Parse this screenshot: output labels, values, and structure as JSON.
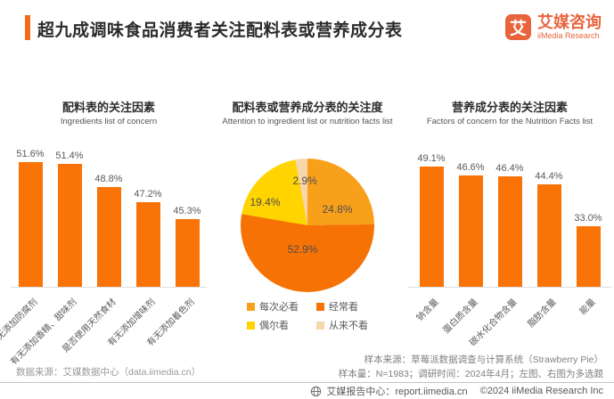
{
  "header": {
    "title": "超九成调味食品消费者关注配料表或营养成分表",
    "logo": {
      "mark": "艾",
      "name_cn": "艾媒咨询",
      "name_en": "iiMedia Research"
    }
  },
  "colors": {
    "accent": "#f26b1d",
    "logo_orange": "#e8643c",
    "bar_orange": "#f97306",
    "text_dark": "#2b2b2b",
    "label_gray": "#595959"
  },
  "chart_data": [
    {
      "type": "bar",
      "title": "配料表的关注因素",
      "subtitle": "Ingredients list of concern",
      "categories": [
        "有无添加防腐剂",
        "有无添加香精、甜味剂",
        "是否使用天然食材",
        "有无添加增味剂",
        "有无添加着色剂"
      ],
      "values": [
        51.6,
        51.4,
        48.8,
        47.2,
        45.3
      ],
      "value_labels": [
        "51.6%",
        "51.4%",
        "48.8%",
        "47.2%",
        "45.3%"
      ],
      "unit": "%",
      "bar_color": "#f97306",
      "grid": false,
      "axis_note": "y-axis hidden, non-zero baseline"
    },
    {
      "type": "pie",
      "title": "配料表或营养成分表的关注度",
      "subtitle": "Attention to ingredient list or nutrition facts list",
      "slices": [
        {
          "label": "每次必看",
          "value": 24.8,
          "display": "24.8%",
          "color": "#f9a01b"
        },
        {
          "label": "经常看",
          "value": 52.9,
          "display": "52.9%",
          "color": "#f77205"
        },
        {
          "label": "偶尔看",
          "value": 19.4,
          "display": "19.4%",
          "color": "#ffd400"
        },
        {
          "label": "从来不看",
          "value": 2.9,
          "display": "2.9%",
          "color": "#f6d6ad"
        }
      ],
      "start_angle": "12 o'clock, clockwise",
      "legend_position": "bottom"
    },
    {
      "type": "bar",
      "title": "营养成分表的关注因素",
      "subtitle": "Factors of concern for the Nutrition Facts list",
      "categories": [
        "钠含量",
        "蛋白质含量",
        "碳水化合物含量",
        "脂肪含量",
        "能量"
      ],
      "values": [
        49.1,
        46.6,
        46.4,
        44.4,
        33.0
      ],
      "value_labels": [
        "49.1%",
        "46.6%",
        "46.4%",
        "44.4%",
        "33.0%"
      ],
      "unit": "%",
      "bar_color": "#f97306",
      "grid": false,
      "axis_note": "y-axis hidden, non-zero baseline"
    }
  ],
  "footnotes": {
    "data_source": "数据来源：艾媒数据中心（data.iimedia.cn）",
    "sample_source": "样本来源：草莓派数据调查与计算系统（Strawberry Pie）",
    "sample_info": "样本量：N=1983；调研时间：2024年4月；左图、右图为多选题"
  },
  "footer": {
    "report_center": "艾媒报告中心：report.iimedia.cn",
    "copyright": "©2024  iiMedia Research Inc"
  }
}
